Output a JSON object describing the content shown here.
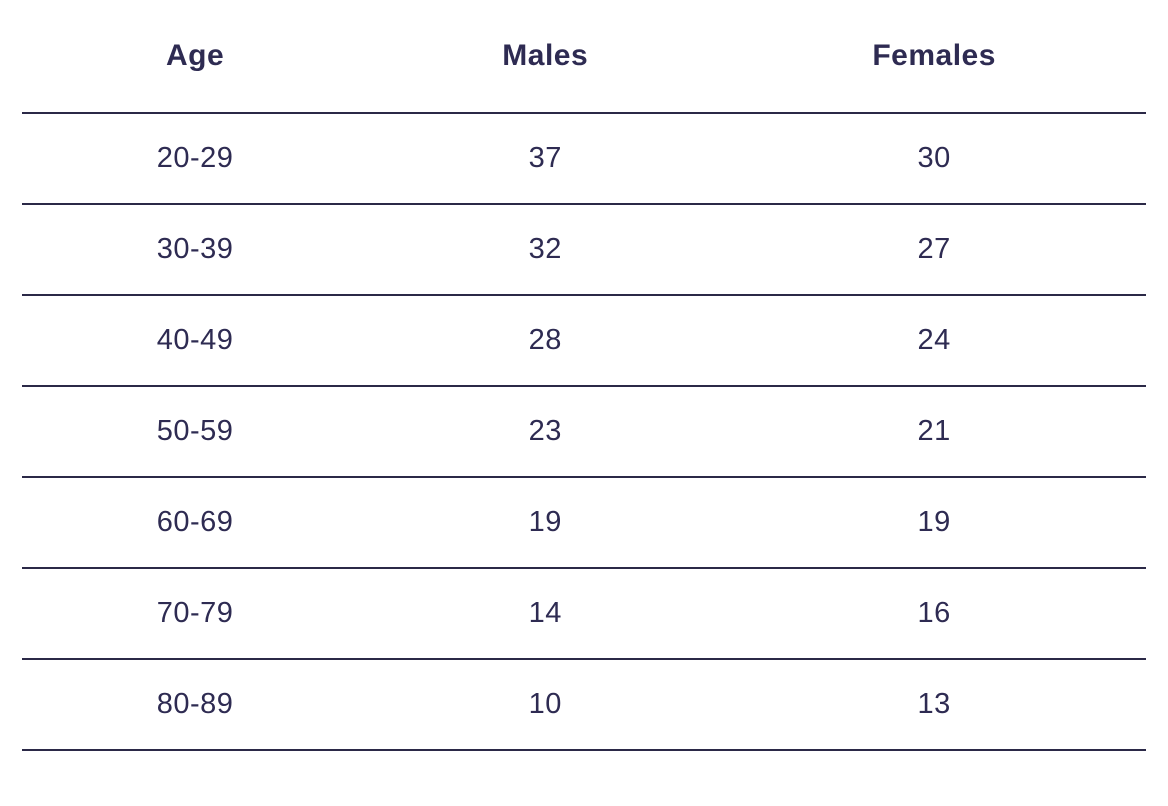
{
  "table": {
    "columns": [
      "Age",
      "Males",
      "Females"
    ],
    "rows": [
      [
        "20-29",
        "37",
        "30"
      ],
      [
        "30-39",
        "32",
        "27"
      ],
      [
        "40-49",
        "28",
        "24"
      ],
      [
        "50-59",
        "23",
        "21"
      ],
      [
        "60-69",
        "19",
        "19"
      ],
      [
        "70-79",
        "14",
        "16"
      ],
      [
        "80-89",
        "10",
        "13"
      ]
    ]
  },
  "chart_data": {
    "type": "table",
    "title": "",
    "columns": [
      "Age",
      "Males",
      "Females"
    ],
    "categories": [
      "20-29",
      "30-39",
      "40-49",
      "50-59",
      "60-69",
      "70-79",
      "80-89"
    ],
    "series": [
      {
        "name": "Males",
        "values": [
          37,
          32,
          28,
          23,
          19,
          14,
          10
        ]
      },
      {
        "name": "Females",
        "values": [
          30,
          27,
          24,
          21,
          19,
          16,
          13
        ]
      }
    ]
  },
  "colors": {
    "text": "#2e2b52",
    "line": "#2b2947",
    "background": "#ffffff"
  }
}
